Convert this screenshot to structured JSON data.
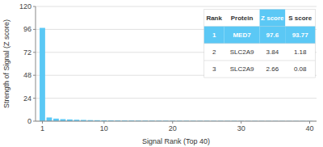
{
  "chart_data": {
    "type": "bar",
    "x": [
      1,
      2,
      3,
      4,
      5,
      6,
      7,
      8,
      9,
      10,
      11,
      12,
      13,
      14,
      15,
      16,
      17,
      18,
      19,
      20,
      21,
      22,
      23,
      24,
      25,
      26,
      27,
      28,
      29,
      30,
      31,
      32,
      33,
      34,
      35,
      36,
      37,
      38,
      39,
      40
    ],
    "values": [
      97.6,
      3.84,
      2.66,
      2.1,
      1.8,
      1.5,
      1.3,
      1.1,
      1.0,
      0.9,
      0.85,
      0.8,
      0.75,
      0.7,
      0.65,
      0.6,
      0.58,
      0.55,
      0.52,
      0.5,
      0.48,
      0.45,
      0.43,
      0.41,
      0.4,
      0.38,
      0.36,
      0.35,
      0.33,
      0.32,
      0.3,
      0.29,
      0.27,
      0.26,
      0.25,
      0.24,
      0.23,
      0.22,
      0.21,
      0.2
    ],
    "color": "#5bc8f5",
    "x_label": "Signal Rank (Top 40)",
    "y_label": "Strength of Signal (Z score)",
    "xlim": [
      0,
      41
    ],
    "ylim": [
      0,
      120
    ],
    "xticks": [
      1,
      10,
      20,
      30,
      40
    ],
    "yticks": [
      0,
      24,
      48,
      72,
      96,
      120
    ],
    "grid": true,
    "table": [
      [
        "Rank",
        "Protein",
        "Z score",
        "S score"
      ],
      [
        "1",
        "MED7",
        "97.6",
        "93.77"
      ],
      [
        "2",
        "SLC2A9",
        "3.84",
        "1.18"
      ],
      [
        "3",
        "SLC2A9",
        "2.66",
        "0.08"
      ]
    ]
  }
}
